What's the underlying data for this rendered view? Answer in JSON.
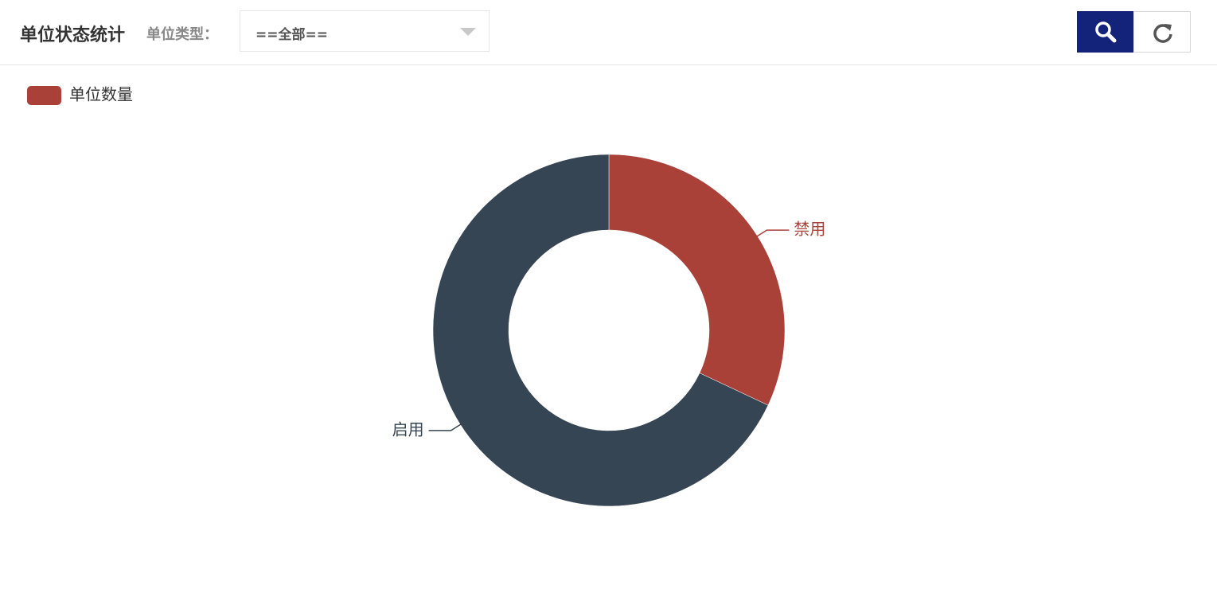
{
  "header": {
    "title": "单位状态统计",
    "filter_label": "单位类型：",
    "filter_value": "==全部=="
  },
  "chart_data": {
    "type": "pie",
    "legend": "top-left",
    "series": [
      {
        "name": "单位数量",
        "values": [
          32,
          68
        ]
      }
    ],
    "categories": [
      "禁用",
      "启用"
    ],
    "colors": [
      "#aa4139",
      "#364553"
    ]
  }
}
